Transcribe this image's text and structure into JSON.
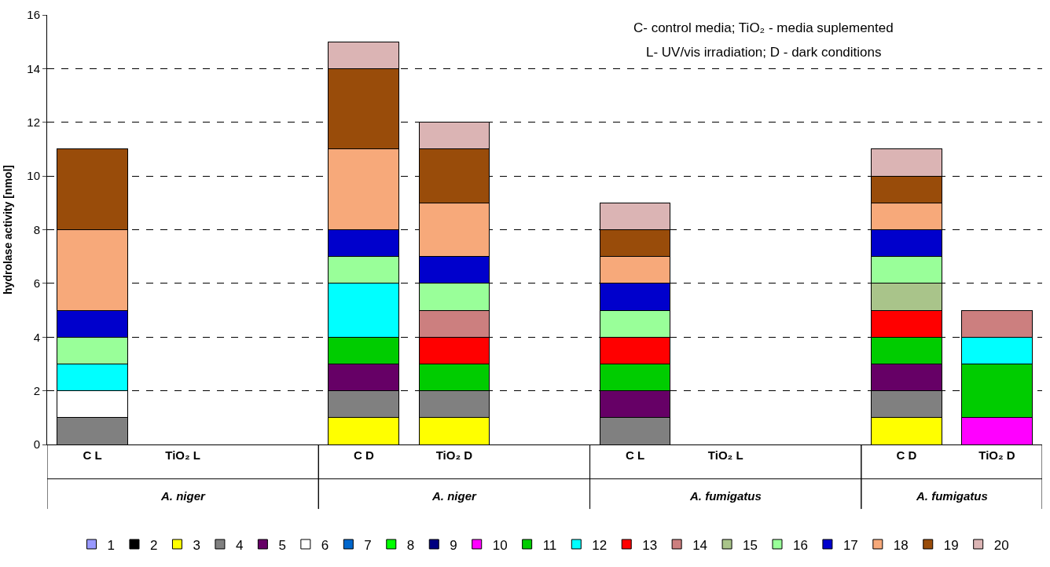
{
  "chart_data": {
    "type": "bar",
    "stacked": true,
    "ylabel": "hydrolase activity [nmol]",
    "categories": [
      "C L",
      "TiO₂ L",
      null,
      "C D",
      "TiO₂ D",
      null,
      "C L",
      "TiO₂ L",
      null,
      "C D",
      "TiO₂ D"
    ],
    "ylim": [
      0,
      16
    ],
    "yticks": [
      0,
      2,
      4,
      6,
      8,
      10,
      12,
      14,
      16
    ],
    "grid": "y",
    "legend": "bottom",
    "annotations": [
      "C- control media; TiO₂ - media suplemented",
      "L- UV/vis irradiation; D - dark conditions",
      "A. niger",
      "A. niger",
      "A. fumigatus",
      "A. fumigatus"
    ],
    "series": [
      {
        "name": "1",
        "color": "#9999ff",
        "values": [
          null,
          null,
          null,
          null,
          null,
          null,
          null,
          null,
          null,
          null,
          null
        ]
      },
      {
        "name": "2",
        "color": "#000000",
        "values": [
          null,
          null,
          null,
          null,
          null,
          null,
          null,
          null,
          null,
          null,
          null
        ]
      },
      {
        "name": "3",
        "color": "#ffff00",
        "values": [
          null,
          null,
          null,
          1,
          1,
          null,
          null,
          null,
          null,
          1,
          null
        ]
      },
      {
        "name": "4",
        "color": "#808080",
        "values": [
          1,
          null,
          null,
          1,
          1,
          null,
          1,
          null,
          null,
          1,
          null
        ]
      },
      {
        "name": "5",
        "color": "#660066",
        "values": [
          null,
          null,
          null,
          1,
          null,
          null,
          1,
          null,
          null,
          1,
          null
        ]
      },
      {
        "name": "6",
        "color": "#ffffff",
        "values": [
          1,
          null,
          null,
          null,
          null,
          null,
          null,
          null,
          null,
          null,
          null
        ]
      },
      {
        "name": "7",
        "color": "#0066cc",
        "values": [
          null,
          null,
          null,
          null,
          null,
          null,
          null,
          null,
          null,
          null,
          null
        ]
      },
      {
        "name": "8",
        "color": "#00ff00",
        "values": [
          null,
          null,
          null,
          null,
          null,
          null,
          null,
          null,
          null,
          null,
          null
        ]
      },
      {
        "name": "9",
        "color": "#000080",
        "values": [
          null,
          null,
          null,
          null,
          null,
          null,
          null,
          null,
          null,
          null,
          null
        ]
      },
      {
        "name": "10",
        "color": "#ff00ff",
        "values": [
          null,
          null,
          null,
          null,
          null,
          null,
          null,
          null,
          null,
          null,
          1
        ]
      },
      {
        "name": "11",
        "color": "#00cc00",
        "values": [
          null,
          null,
          null,
          1,
          1,
          null,
          1,
          null,
          null,
          1,
          2
        ]
      },
      {
        "name": "12",
        "color": "#00ffff",
        "values": [
          1,
          null,
          null,
          2,
          null,
          null,
          null,
          null,
          null,
          null,
          1
        ]
      },
      {
        "name": "13",
        "color": "#ff0000",
        "values": [
          null,
          null,
          null,
          null,
          1,
          null,
          1,
          null,
          null,
          1,
          null
        ]
      },
      {
        "name": "14",
        "color": "#cc7f7f",
        "values": [
          null,
          null,
          null,
          null,
          1,
          null,
          null,
          null,
          null,
          null,
          1
        ]
      },
      {
        "name": "15",
        "color": "#a9c48a",
        "values": [
          null,
          null,
          null,
          null,
          null,
          null,
          null,
          null,
          null,
          1,
          null
        ]
      },
      {
        "name": "16",
        "color": "#99ff99",
        "values": [
          1,
          null,
          null,
          1,
          1,
          null,
          1,
          null,
          null,
          1,
          null
        ]
      },
      {
        "name": "17",
        "color": "#0000cc",
        "values": [
          1,
          null,
          null,
          1,
          1,
          null,
          1,
          null,
          null,
          1,
          null
        ]
      },
      {
        "name": "18",
        "color": "#f7a97a",
        "values": [
          3,
          null,
          null,
          3,
          2,
          null,
          1,
          null,
          null,
          1,
          null
        ]
      },
      {
        "name": "19",
        "color": "#994c0a",
        "values": [
          3,
          null,
          null,
          3,
          2,
          null,
          1,
          null,
          null,
          1,
          null
        ]
      },
      {
        "name": "20",
        "color": "#dbb4b4",
        "values": [
          null,
          null,
          null,
          1,
          1,
          null,
          1,
          null,
          null,
          1,
          null
        ]
      }
    ]
  }
}
